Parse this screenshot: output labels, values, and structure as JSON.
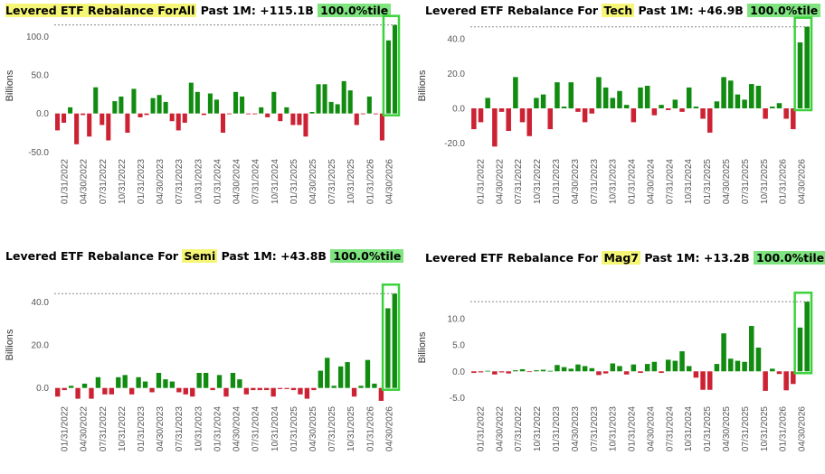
{
  "colors": {
    "positive": "#118c11",
    "negative": "#cc2233",
    "highlight_box": "#3bd23b",
    "highlight_fill": "#7fe47f",
    "label_yellow": "#f5f576"
  },
  "chart_data": [
    {
      "type": "bar",
      "title_prefix": "Levered ETF Rebalance For ",
      "label": "All",
      "title_middle": " Past 1M: +115.1B ",
      "percentile": "100.0%tile",
      "ylabel": "Billions",
      "ylim": [
        -52,
        124
      ],
      "yticks": [
        -50,
        0,
        50,
        100
      ],
      "ytick_labels": [
        "-50.0",
        "0.0",
        "50.0",
        "100.0"
      ],
      "reference_line": 115.1,
      "xtick_labels": [
        "01/31/2022",
        "04/30/2022",
        "07/31/2022",
        "10/31/2022",
        "01/31/2023",
        "04/30/2023",
        "07/31/2023",
        "10/31/2023",
        "01/31/2024",
        "04/30/2024",
        "07/31/2024",
        "10/31/2024",
        "01/31/2025",
        "04/30/2025",
        "07/31/2025",
        "10/31/2025",
        "01/31/2026",
        "04/30/2026"
      ],
      "values": [
        -22,
        -12,
        8,
        -40,
        -2,
        -30,
        34,
        -15,
        -35,
        16,
        22,
        -25,
        32,
        -5,
        -2,
        20,
        24,
        15,
        -10,
        -22,
        -12,
        40,
        28,
        -2,
        26,
        18,
        -25,
        -1,
        28,
        22,
        -1,
        -1,
        8,
        -5,
        28,
        -10,
        8,
        -15,
        -15,
        -30,
        2,
        38,
        38,
        15,
        12,
        42,
        30,
        -15,
        -1,
        22,
        -1,
        -35,
        95,
        115
      ],
      "highlight_last": 2
    },
    {
      "type": "bar",
      "title_prefix": "Levered ETF Rebalance For ",
      "label": "Tech",
      "title_middle": " Past 1M: +46.9B ",
      "percentile": "100.0%tile",
      "ylabel": "Billions",
      "ylim": [
        -26,
        52
      ],
      "yticks": [
        -20,
        0,
        20,
        40
      ],
      "ytick_labels": [
        "-20.0",
        "0.0",
        "20.0",
        "40.0"
      ],
      "reference_line": 46.9,
      "xtick_labels": [
        "01/31/2022",
        "04/30/2022",
        "07/31/2022",
        "10/31/2022",
        "01/31/2023",
        "04/30/2023",
        "07/31/2023",
        "10/31/2023",
        "01/31/2024",
        "04/30/2024",
        "07/31/2024",
        "10/31/2024",
        "01/31/2025",
        "04/30/2025",
        "07/31/2025",
        "10/31/2025",
        "01/31/2026",
        "04/30/2026"
      ],
      "values": [
        -12,
        -8,
        6,
        -22,
        -2,
        -13,
        18,
        -8,
        -16,
        6,
        8,
        -12,
        15,
        1,
        15,
        -2,
        -8,
        -3,
        18,
        12,
        6,
        10,
        2,
        -8,
        12,
        13,
        -4,
        2,
        -1,
        5,
        -2,
        12,
        1,
        -6,
        -14,
        4,
        18,
        16,
        8,
        5,
        14,
        13,
        -6,
        1,
        3,
        -6,
        -12,
        38,
        47
      ],
      "highlight_last": 2
    },
    {
      "type": "bar",
      "title_prefix": "Levered ETF Rebalance For ",
      "label": "Semi",
      "title_middle": " Past 1M: +43.8B ",
      "percentile": "100.0%tile",
      "ylabel": "Billions",
      "ylim": [
        -6,
        46
      ],
      "yticks": [
        0,
        20,
        40
      ],
      "ytick_labels": [
        "0.0",
        "20.0",
        "40.0"
      ],
      "reference_line": 43.8,
      "xtick_labels": [
        "01/31/2022",
        "04/30/2022",
        "07/31/2022",
        "10/31/2022",
        "01/31/2023",
        "04/30/2023",
        "07/31/2023",
        "10/31/2023",
        "01/31/2024",
        "04/30/2024",
        "07/31/2024",
        "10/31/2024",
        "01/31/2025",
        "04/30/2025",
        "07/31/2025",
        "10/31/2025",
        "01/31/2026",
        "04/30/2026"
      ],
      "values": [
        -4,
        -1,
        1,
        -5,
        2,
        -5,
        5,
        -3,
        -3,
        5,
        6,
        -3,
        5,
        3,
        -2,
        7,
        4,
        3,
        -2,
        -3,
        -4,
        7,
        7,
        -1,
        6,
        -4,
        7,
        4,
        -3,
        -1,
        -1,
        -1,
        -4,
        -0.5,
        -0.5,
        -1,
        -3,
        -5,
        -1,
        8,
        14,
        1,
        10,
        12,
        -4,
        1,
        13,
        2,
        -6,
        37,
        43.8
      ],
      "highlight_last": 2
    },
    {
      "type": "bar",
      "title_prefix": "Levered ETF Rebalance For ",
      "label": "Mag7",
      "title_middle": " Past 1M: +13.2B ",
      "percentile": "100.0%tile",
      "ylabel": "Billions",
      "ylim": [
        -5.6,
        14.6
      ],
      "yticks": [
        -5,
        0,
        5,
        10
      ],
      "ytick_labels": [
        "-5.0",
        "0.0",
        "5.0",
        "10.0"
      ],
      "reference_line": 13.2,
      "xtick_labels": [
        "01/31/2022",
        "04/30/2022",
        "07/31/2022",
        "10/31/2022",
        "01/31/2023",
        "04/30/2023",
        "07/31/2023",
        "10/31/2023",
        "01/31/2024",
        "04/30/2024",
        "07/31/2024",
        "10/31/2024",
        "01/31/2025",
        "04/30/2025",
        "07/31/2025",
        "10/31/2025",
        "01/31/2026",
        "04/30/2026"
      ],
      "values": [
        -0.3,
        -0.2,
        0.1,
        -0.6,
        -0.2,
        -0.4,
        0.2,
        0.4,
        -0.1,
        0.2,
        0.3,
        0.1,
        1.2,
        0.8,
        0.5,
        1.3,
        1.0,
        0.6,
        -0.7,
        -0.4,
        1.5,
        1.0,
        -0.6,
        1.3,
        -0.3,
        1.4,
        1.8,
        -0.3,
        2.2,
        2.0,
        3.8,
        1.0,
        -1.2,
        -3.5,
        -3.5,
        1.4,
        7.2,
        2.4,
        2.0,
        1.8,
        8.6,
        4.5,
        -3.7,
        0.5,
        -0.5,
        -3.6,
        -2.4,
        8.3,
        13.2
      ],
      "highlight_last": 2
    }
  ]
}
